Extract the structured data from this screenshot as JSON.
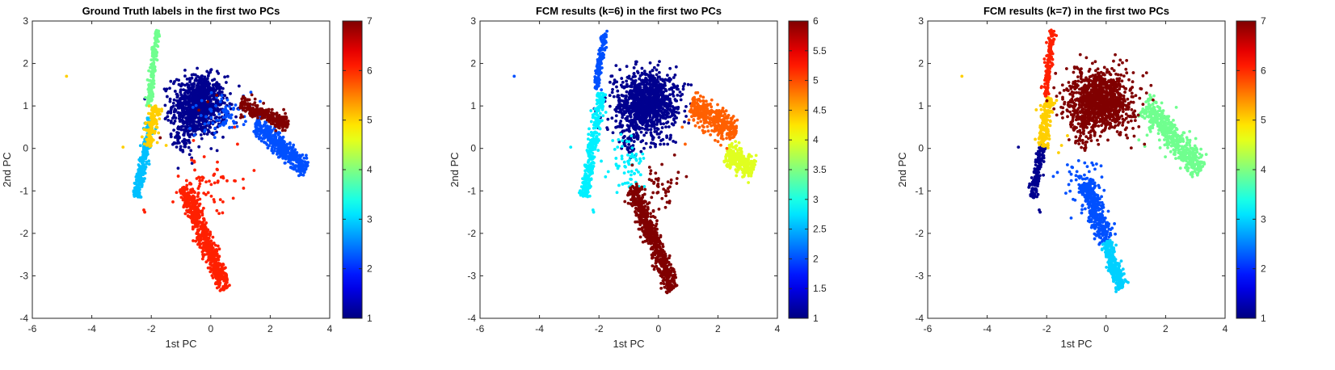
{
  "colormap": "jet",
  "chart_data": [
    {
      "type": "scatter",
      "title": "Ground Truth labels in the first two PCs",
      "xlabel": "1st PC",
      "ylabel": "2nd PC",
      "xlim": [
        -6,
        4
      ],
      "ylim": [
        -4,
        3
      ],
      "xticks": [
        "-6",
        "-4",
        "-2",
        "0",
        "2",
        "4"
      ],
      "yticks": [
        "-4",
        "-3",
        "-2",
        "-1",
        "0",
        "1",
        "2",
        "3"
      ],
      "colorbar": {
        "range": [
          1,
          7
        ],
        "ticks": [
          "1",
          "2",
          "3",
          "4",
          "5",
          "6",
          "7"
        ]
      },
      "grid": false,
      "clusters": [
        {
          "label": 1,
          "color": "#00008f",
          "shape": "blob",
          "center": [
            -0.4,
            1.0
          ],
          "sd": [
            0.45,
            0.35
          ],
          "n": 800
        },
        {
          "label": 1,
          "color": "#00008f",
          "shape": "line",
          "from": [
            -1.1,
            0.0
          ],
          "to": [
            -0.2,
            1.7
          ],
          "width": 0.2,
          "n": 200
        },
        {
          "label": 2,
          "color": "#0050ff",
          "shape": "line",
          "from": [
            1.5,
            0.6
          ],
          "to": [
            3.2,
            -0.5
          ],
          "width": 0.12,
          "n": 450
        },
        {
          "label": 2,
          "color": "#0050ff",
          "shape": "blob",
          "center": [
            0.5,
            0.75
          ],
          "sd": [
            0.45,
            0.25
          ],
          "n": 80
        },
        {
          "label": 3,
          "color": "#00c0ff",
          "shape": "line",
          "from": [
            -2.5,
            -1.15
          ],
          "to": [
            -2.0,
            0.7
          ],
          "width": 0.07,
          "n": 260
        },
        {
          "label": 4,
          "color": "#70ff8f",
          "shape": "line",
          "from": [
            -2.1,
            1.0
          ],
          "to": [
            -1.8,
            2.78
          ],
          "width": 0.05,
          "n": 180
        },
        {
          "label": 5,
          "color": "#ffcf00",
          "shape": "line",
          "from": [
            -2.1,
            0.05
          ],
          "to": [
            -1.85,
            1.0
          ],
          "width": 0.09,
          "n": 130
        },
        {
          "label": 5,
          "color": "#ffcf00",
          "shape": "points",
          "xy": [
            [
              -4.85,
              1.7
            ],
            [
              -2.95,
              0.03
            ],
            [
              -1.5,
              0.07
            ]
          ]
        },
        {
          "label": 6,
          "color": "#ff2000",
          "shape": "line",
          "from": [
            -0.9,
            -0.9
          ],
          "to": [
            0.5,
            -3.3
          ],
          "width": 0.12,
          "n": 650
        },
        {
          "label": 6,
          "color": "#ff2000",
          "shape": "blob",
          "center": [
            0.0,
            -0.9
          ],
          "sd": [
            0.5,
            0.3
          ],
          "n": 60
        },
        {
          "label": 6,
          "color": "#ff2000",
          "shape": "points",
          "xy": [
            [
              -2.25,
              -1.45
            ],
            [
              -2.22,
              -1.5
            ],
            [
              0.8,
              0.5
            ],
            [
              0.9,
              0.1
            ]
          ]
        },
        {
          "label": 7,
          "color": "#800000",
          "shape": "line",
          "from": [
            1.0,
            1.05
          ],
          "to": [
            2.6,
            0.55
          ],
          "width": 0.1,
          "n": 260
        },
        {
          "label": 7,
          "color": "#800000",
          "shape": "points",
          "xy": [
            [
              -1.7,
              0.25
            ],
            [
              -0.4,
              0.9
            ],
            [
              -0.1,
              1.1
            ],
            [
              0.2,
              1.25
            ]
          ]
        }
      ]
    },
    {
      "type": "scatter",
      "title": "FCM results (k=6) in the first two PCs",
      "xlabel": "1st PC",
      "ylabel": "2nd PC",
      "xlim": [
        -6,
        4
      ],
      "ylim": [
        -4,
        3
      ],
      "xticks": [
        "-6",
        "-4",
        "-2",
        "0",
        "2",
        "4"
      ],
      "yticks": [
        "-4",
        "-3",
        "-2",
        "-1",
        "0",
        "1",
        "2",
        "3"
      ],
      "colorbar": {
        "range": [
          1,
          6
        ],
        "ticks": [
          "1",
          "1.5",
          "2",
          "2.5",
          "3",
          "3.5",
          "4",
          "4.5",
          "5",
          "5.5",
          "6"
        ]
      },
      "grid": false,
      "clusters": [
        {
          "label": 1,
          "color": "#00008f",
          "shape": "blob",
          "center": [
            -0.4,
            1.05
          ],
          "sd": [
            0.5,
            0.38
          ],
          "n": 1000
        },
        {
          "label": 1,
          "color": "#00008f",
          "shape": "line",
          "from": [
            -1.1,
            0.0
          ],
          "to": [
            -0.2,
            1.7
          ],
          "width": 0.2,
          "n": 150
        },
        {
          "label": 2,
          "color": "#0050ff",
          "shape": "line",
          "from": [
            -2.1,
            1.4
          ],
          "to": [
            -1.8,
            2.78
          ],
          "width": 0.05,
          "n": 150
        },
        {
          "label": 2,
          "color": "#0050ff",
          "shape": "points",
          "xy": [
            [
              -4.85,
              1.7
            ]
          ]
        },
        {
          "label": 3,
          "color": "#00f0ff",
          "shape": "line",
          "from": [
            -2.5,
            -1.15
          ],
          "to": [
            -1.9,
            1.3
          ],
          "width": 0.08,
          "n": 330
        },
        {
          "label": 3,
          "color": "#00f0ff",
          "shape": "blob",
          "center": [
            -1.0,
            -0.4
          ],
          "sd": [
            0.3,
            0.4
          ],
          "n": 70
        },
        {
          "label": 3,
          "color": "#00f0ff",
          "shape": "points",
          "xy": [
            [
              -2.95,
              0.03
            ],
            [
              -2.2,
              -1.45
            ],
            [
              -2.18,
              -1.5
            ]
          ]
        },
        {
          "label": 4,
          "color": "#e0ff20",
          "shape": "line",
          "from": [
            2.3,
            -0.1
          ],
          "to": [
            3.2,
            -0.5
          ],
          "width": 0.14,
          "n": 280
        },
        {
          "label": 5,
          "color": "#ff6000",
          "shape": "line",
          "from": [
            1.1,
            1.05
          ],
          "to": [
            2.6,
            0.35
          ],
          "width": 0.15,
          "n": 380
        },
        {
          "label": 5,
          "color": "#ff6000",
          "shape": "points",
          "xy": [
            [
              0.8,
              0.5
            ],
            [
              0.9,
              0.1
            ]
          ]
        },
        {
          "label": 6,
          "color": "#800000",
          "shape": "line",
          "from": [
            -0.9,
            -0.9
          ],
          "to": [
            0.5,
            -3.3
          ],
          "width": 0.12,
          "n": 650
        },
        {
          "label": 6,
          "color": "#800000",
          "shape": "blob",
          "center": [
            0.0,
            -0.9
          ],
          "sd": [
            0.45,
            0.3
          ],
          "n": 60
        }
      ]
    },
    {
      "type": "scatter",
      "title": "FCM results (k=7) in the first two PCs",
      "xlabel": "1st PC",
      "ylabel": "2nd PC",
      "xlim": [
        -6,
        4
      ],
      "ylim": [
        -4,
        3
      ],
      "xticks": [
        "-6",
        "-4",
        "-2",
        "0",
        "2",
        "4"
      ],
      "yticks": [
        "-4",
        "-3",
        "-2",
        "-1",
        "0",
        "1",
        "2",
        "3"
      ],
      "colorbar": {
        "range": [
          1,
          7
        ],
        "ticks": [
          "1",
          "2",
          "3",
          "4",
          "5",
          "6",
          "7"
        ]
      },
      "grid": false,
      "clusters": [
        {
          "label": 1,
          "color": "#00008f",
          "shape": "line",
          "from": [
            -2.5,
            -1.15
          ],
          "to": [
            -2.1,
            0.1
          ],
          "width": 0.06,
          "n": 160
        },
        {
          "label": 1,
          "color": "#00008f",
          "shape": "points",
          "xy": [
            [
              -2.95,
              0.03
            ],
            [
              -2.25,
              -1.45
            ],
            [
              -2.22,
              -1.5
            ]
          ]
        },
        {
          "label": 2,
          "color": "#0050ff",
          "shape": "line",
          "from": [
            -0.7,
            -0.8
          ],
          "to": [
            0.0,
            -2.2
          ],
          "width": 0.15,
          "n": 330
        },
        {
          "label": 2,
          "color": "#0050ff",
          "shape": "blob",
          "center": [
            -0.8,
            -0.8
          ],
          "sd": [
            0.35,
            0.3
          ],
          "n": 60
        },
        {
          "label": 3,
          "color": "#00d0ff",
          "shape": "line",
          "from": [
            0.0,
            -2.2
          ],
          "to": [
            0.5,
            -3.3
          ],
          "width": 0.1,
          "n": 280
        },
        {
          "label": 4,
          "color": "#70ff8f",
          "shape": "line",
          "from": [
            1.3,
            1.05
          ],
          "to": [
            3.2,
            -0.5
          ],
          "width": 0.16,
          "n": 500
        },
        {
          "label": 4,
          "color": "#70ff8f",
          "shape": "points",
          "xy": [
            [
              1.1,
              0.2
            ],
            [
              1.3,
              0.05
            ]
          ]
        },
        {
          "label": 5,
          "color": "#ffcf00",
          "shape": "line",
          "from": [
            -2.15,
            0.05
          ],
          "to": [
            -1.9,
            1.2
          ],
          "width": 0.1,
          "n": 170
        },
        {
          "label": 5,
          "color": "#ffcf00",
          "shape": "points",
          "xy": [
            [
              -4.85,
              1.7
            ],
            [
              -1.5,
              0.07
            ],
            [
              -1.3,
              0.3
            ],
            [
              -1.6,
              -0.1
            ]
          ]
        },
        {
          "label": 6,
          "color": "#ff2000",
          "shape": "line",
          "from": [
            -2.05,
            1.2
          ],
          "to": [
            -1.8,
            2.78
          ],
          "width": 0.05,
          "n": 170
        },
        {
          "label": 7,
          "color": "#800000",
          "shape": "blob",
          "center": [
            -0.2,
            1.1
          ],
          "sd": [
            0.55,
            0.35
          ],
          "n": 1000
        },
        {
          "label": 7,
          "color": "#800000",
          "shape": "line",
          "from": [
            -1.0,
            0.1
          ],
          "to": [
            -0.1,
            1.7
          ],
          "width": 0.2,
          "n": 150
        }
      ]
    }
  ]
}
